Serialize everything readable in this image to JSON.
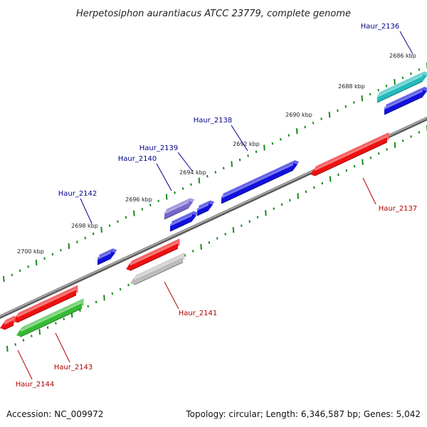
{
  "title": "Herpetosiphon aurantiacus ATCC 23779, complete genome",
  "footer": {
    "accession": "Accession: NC_009972",
    "summary": "Topology: circular; Length: 6,346,587 bp; Genes: 5,042"
  },
  "colors": {
    "backbone": "#7a7a7a",
    "ticks": "#1a8a1a",
    "forward_label": "#00008b",
    "reverse_label": "#b00000",
    "red": "#ee1111",
    "blue": "#1111dd",
    "green": "#33bb33",
    "cyan": "#22bbbb",
    "gray": "#bbbbbb",
    "purple": "#7766cc"
  },
  "tick_labels": [
    "2686 kbp",
    "2688 kbp",
    "2690 kbp",
    "2692 kbp",
    "2694 kbp",
    "2696 kbp",
    "2698 kbp",
    "2700 kbp"
  ],
  "genes": [
    {
      "name": "Haur_2136",
      "color": "cyan",
      "strand": "forward"
    },
    {
      "name": "Haur_2137",
      "color": "red",
      "strand": "reverse"
    },
    {
      "name": "Haur_2138",
      "color": "blue",
      "strand": "forward"
    },
    {
      "name": "Haur_2139",
      "color": "blue",
      "strand": "forward"
    },
    {
      "name": "Haur_2140",
      "color": "purple",
      "strand": "forward"
    },
    {
      "name": "Haur_2141",
      "color": "gray",
      "strand": "reverse"
    },
    {
      "name": "Haur_2142",
      "color": "blue",
      "strand": "forward"
    },
    {
      "name": "Haur_2143",
      "color": "green",
      "strand": "reverse"
    },
    {
      "name": "Haur_2144",
      "color": "red",
      "strand": "reverse"
    }
  ]
}
